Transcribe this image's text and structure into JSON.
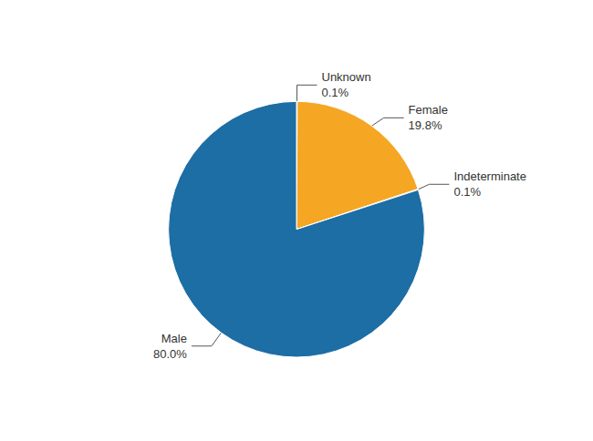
{
  "chart_data": {
    "type": "pie",
    "categories": [
      "Unknown",
      "Female",
      "Indeterminate",
      "Male"
    ],
    "values": [
      0.1,
      19.8,
      0.1,
      80.0
    ],
    "value_labels": [
      "0.1%",
      "19.8%",
      "0.1%",
      "80.0%"
    ],
    "colors": [
      "#1C6EA4",
      "#F5A623",
      "#1C6EA4",
      "#1C6EA4"
    ],
    "data_labels": true
  }
}
